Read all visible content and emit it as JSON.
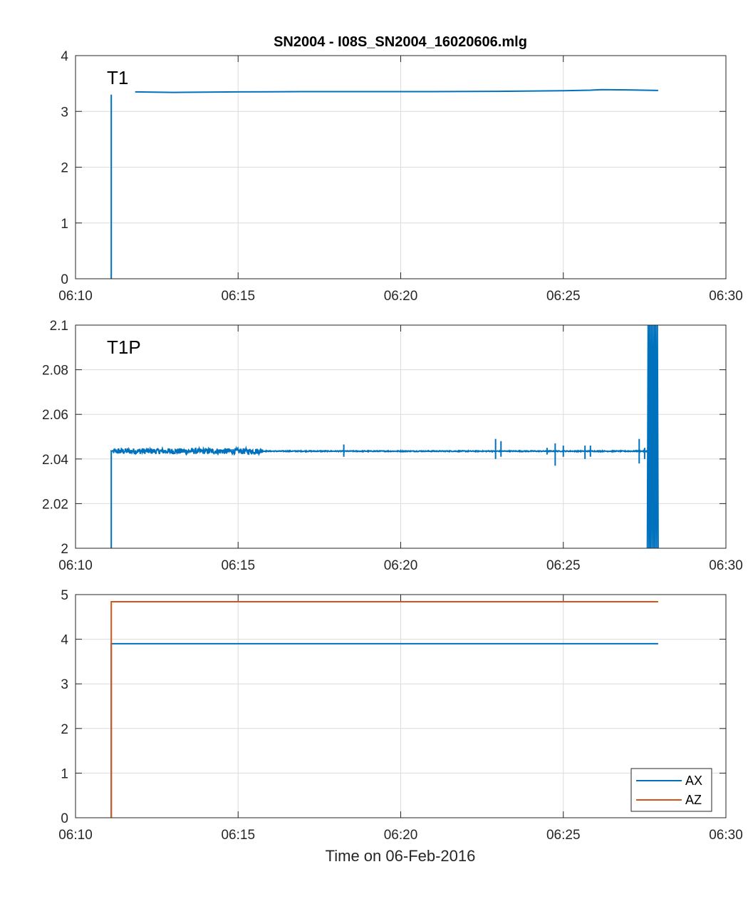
{
  "chart_data": [
    {
      "type": "line",
      "title": "SN2004 - I08S_SN2004_16020606.mlg",
      "annotation": "T1",
      "xlabel": "",
      "ylabel": "",
      "xlim": [
        "06:10",
        "06:30"
      ],
      "ylim": [
        0,
        4
      ],
      "xticks": [
        "06:10",
        "06:15",
        "06:20",
        "06:25",
        "06:30"
      ],
      "yticks": [
        "0",
        "1",
        "2",
        "3",
        "4"
      ],
      "grid": true,
      "series": [
        {
          "color": "#0072BD",
          "segments": [
            {
              "x": [
                "06:11:06",
                "06:11:06",
                "06:11:06"
              ],
              "y": [
                0,
                3.3,
                0
              ]
            },
            {
              "x": [
                "06:11:50",
                "06:13:00",
                "06:15:00",
                "06:17:00",
                "06:19:00",
                "06:21:00",
                "06:23:00",
                "06:25:00",
                "06:25:50",
                "06:26:10",
                "06:27:00",
                "06:27:55"
              ],
              "y": [
                3.35,
                3.34,
                3.35,
                3.355,
                3.355,
                3.355,
                3.36,
                3.37,
                3.38,
                3.39,
                3.385,
                3.375
              ]
            }
          ]
        }
      ]
    },
    {
      "type": "line",
      "title": "",
      "annotation": "T1P",
      "xlabel": "",
      "ylabel": "",
      "xlim": [
        "06:10",
        "06:30"
      ],
      "ylim": [
        2,
        2.1
      ],
      "xticks": [
        "06:10",
        "06:15",
        "06:20",
        "06:25",
        "06:30"
      ],
      "yticks": [
        "2",
        "2.02",
        "2.04",
        "2.06",
        "2.08",
        "2.1"
      ],
      "grid": true,
      "series": [
        {
          "color": "#0072BD",
          "base": 2.0435,
          "start": "06:11:06",
          "end": "06:27:55",
          "noisy_interval": {
            "from": "06:11:10",
            "to": "06:15:45",
            "amplitude": 0.0013
          },
          "spikes": [
            {
              "x": "06:18:15",
              "lo": 2.041,
              "hi": 2.0465
            },
            {
              "x": "06:22:55",
              "lo": 2.04,
              "hi": 2.049
            },
            {
              "x": "06:23:05",
              "lo": 2.041,
              "hi": 2.048
            },
            {
              "x": "06:24:30",
              "lo": 2.042,
              "hi": 2.045
            },
            {
              "x": "06:24:45",
              "lo": 2.037,
              "hi": 2.047
            },
            {
              "x": "06:25:00",
              "lo": 2.041,
              "hi": 2.046
            },
            {
              "x": "06:25:40",
              "lo": 2.04,
              "hi": 2.046
            },
            {
              "x": "06:25:50",
              "lo": 2.041,
              "hi": 2.046
            },
            {
              "x": "06:27:20",
              "lo": 2.038,
              "hi": 2.049
            },
            {
              "x": "06:27:30",
              "lo": 2.04,
              "hi": 2.045
            }
          ],
          "oscillation": {
            "from": "06:27:35",
            "to": "06:27:55",
            "lo": 2.0,
            "hi": 2.1
          }
        }
      ]
    },
    {
      "type": "line",
      "title": "",
      "xlabel": "Time on 06-Feb-2016",
      "ylabel": "",
      "xlim": [
        "06:10",
        "06:30"
      ],
      "ylim": [
        0,
        5
      ],
      "xticks": [
        "06:10",
        "06:15",
        "06:20",
        "06:25",
        "06:30"
      ],
      "yticks": [
        "0",
        "1",
        "2",
        "3",
        "4",
        "5"
      ],
      "grid": true,
      "legend": {
        "placement": "bottom-right"
      },
      "series": [
        {
          "name": "AX",
          "color": "#0072BD",
          "x": [
            "06:11:06",
            "06:11:06",
            "06:27:55"
          ],
          "y": [
            0,
            3.9,
            3.9
          ]
        },
        {
          "name": "AZ",
          "color": "#D95319",
          "x": [
            "06:11:06",
            "06:11:06",
            "06:27:55"
          ],
          "y": [
            0,
            4.84,
            4.84
          ]
        }
      ]
    }
  ]
}
